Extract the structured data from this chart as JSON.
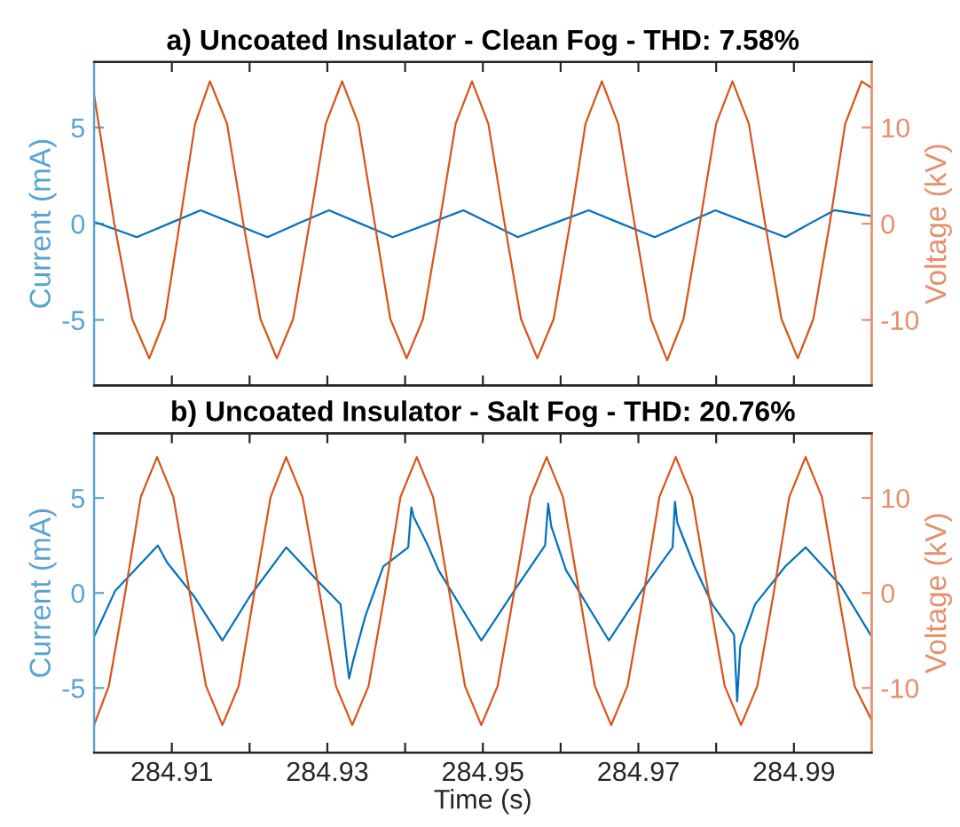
{
  "chart_data": [
    {
      "type": "line",
      "title": "a) Uncoated Insulator - Clean Fog - THD: 7.58%",
      "ylabel": "Current (mA)",
      "y2label": "Voltage (kV)",
      "tick_labels": "y",
      "grid": false,
      "line_style": "solid",
      "marker": "none",
      "xlim": [
        284.9,
        285.0
      ],
      "xticks": [
        284.91,
        {
          "value": 284.92,
          "label": null
        },
        284.93,
        {
          "value": 284.94,
          "label": null
        },
        284.95,
        {
          "value": 284.96,
          "label": null
        },
        284.97,
        {
          "value": 284.98,
          "label": null
        },
        284.99
      ],
      "ylim": [
        -8.4,
        8.4
      ],
      "yticks": [
        -5,
        0,
        5
      ],
      "y2lim": [
        -16.8,
        16.8
      ],
      "y2ticks": [
        -10,
        0,
        10
      ],
      "series": [
        {
          "axis": "y",
          "color": "#0072bd",
          "x": [
            284.9,
            284.9055,
            284.9096,
            284.9137,
            284.918,
            284.9223,
            284.9262,
            284.9302,
            284.9343,
            284.9384,
            284.943,
            284.9475,
            284.951,
            284.9545,
            284.959,
            284.9636,
            284.9678,
            284.9721,
            284.976,
            284.9799,
            284.9844,
            284.9889,
            284.992,
            284.9952,
            285.0
          ],
          "values": [
            0.1,
            -0.7,
            0,
            0.7,
            0,
            -0.7,
            0,
            0.7,
            0,
            -0.7,
            0,
            0.7,
            0,
            -0.7,
            0,
            0.7,
            0,
            -0.7,
            0,
            0.7,
            0,
            -0.7,
            0,
            0.7,
            0.4
          ]
        },
        {
          "axis": "y2",
          "color": "#d95319",
          "x": [
            284.9,
            284.9026,
            284.9049,
            284.9071,
            284.9091,
            284.911,
            284.913,
            284.9149,
            284.9171,
            284.9192,
            284.9214,
            284.9235,
            284.9256,
            284.9277,
            284.9298,
            284.9319,
            284.934,
            284.9361,
            284.9381,
            284.9402,
            284.9423,
            284.9444,
            284.9465,
            284.9486,
            284.9507,
            284.9528,
            284.9549,
            284.957,
            284.9591,
            284.9612,
            284.9632,
            284.9653,
            284.9674,
            284.9695,
            284.9716,
            284.9737,
            284.9758,
            284.9779,
            284.98,
            284.9821,
            284.9842,
            284.9863,
            284.9884,
            284.9905,
            284.9925,
            284.9946,
            284.9966,
            284.9987,
            285.0
          ],
          "values": [
            13.4,
            0,
            -9.9,
            -14.0,
            -9.9,
            0,
            10.4,
            14.8,
            10.4,
            0,
            -9.9,
            -14.0,
            -9.9,
            0,
            10.4,
            14.8,
            10.4,
            0,
            -9.9,
            -14.0,
            -9.9,
            0,
            10.4,
            14.8,
            10.4,
            0,
            -9.9,
            -14.0,
            -9.9,
            0,
            10.4,
            14.8,
            10.4,
            0,
            -9.9,
            -14.2,
            -9.9,
            0,
            10.4,
            14.8,
            10.4,
            0,
            -9.9,
            -14.0,
            -9.9,
            0,
            10.4,
            14.8,
            14.1
          ]
        }
      ]
    },
    {
      "type": "line",
      "title": "b) Uncoated Insulator - Salt Fog - THD: 20.76%",
      "xlabel": "Time (s)",
      "ylabel": "Current (mA)",
      "y2label": "Voltage (kV)",
      "grid": false,
      "line_style": "solid",
      "marker": "none",
      "xlim": [
        284.9,
        285.0
      ],
      "xticks": [
        284.91,
        {
          "value": 284.92,
          "label": null
        },
        284.93,
        {
          "value": 284.94,
          "label": null
        },
        284.95,
        {
          "value": 284.96,
          "label": null
        },
        284.97,
        {
          "value": 284.98,
          "label": null
        },
        284.99
      ],
      "ylim": [
        -8.4,
        8.4
      ],
      "yticks": [
        -5,
        0,
        5
      ],
      "y2lim": [
        -16.8,
        16.8
      ],
      "y2ticks": [
        -10,
        0,
        10
      ],
      "series": [
        {
          "axis": "y",
          "color": "#0072bd",
          "x": [
            284.9,
            284.9027,
            284.9082,
            284.9094,
            284.9129,
            284.9165,
            284.92,
            284.9247,
            284.9286,
            284.9317,
            284.9325,
            284.9328,
            284.9333,
            284.9349,
            284.9372,
            284.9404,
            284.9408,
            284.9411,
            284.9427,
            284.9443,
            284.9498,
            284.9545,
            284.958,
            284.9584,
            284.9588,
            284.9607,
            284.9662,
            284.9709,
            284.9744,
            284.9747,
            284.975,
            284.9772,
            284.9795,
            284.9823,
            284.9827,
            284.9831,
            284.985,
            284.9889,
            284.9915,
            284.996,
            285.0
          ],
          "values": [
            -2.3,
            0.1,
            2.5,
            1.6,
            -0.2,
            -2.5,
            -0.2,
            2.4,
            0.7,
            -0.6,
            -3.5,
            -4.5,
            -3.6,
            -1.2,
            1.4,
            2.4,
            4.5,
            4.0,
            2.7,
            1.2,
            -2.5,
            0.4,
            2.5,
            4.7,
            3.5,
            1.2,
            -2.5,
            0.4,
            2.4,
            4.8,
            3.7,
            1.4,
            -0.6,
            -2.2,
            -5.7,
            -2.8,
            -0.6,
            1.4,
            2.4,
            0.4,
            -2.3
          ]
        },
        {
          "axis": "y2",
          "color": "#d95319",
          "x": [
            284.9,
            284.9019,
            284.904,
            284.906,
            284.9081,
            284.9102,
            284.9123,
            284.9144,
            284.9165,
            284.9186,
            284.9206,
            284.9227,
            284.9247,
            284.9268,
            284.929,
            284.9311,
            284.9332,
            284.9353,
            284.9374,
            284.9394,
            284.9415,
            284.9436,
            284.9457,
            284.9477,
            284.9498,
            284.9519,
            284.954,
            284.9561,
            284.9582,
            284.9603,
            284.9624,
            284.9644,
            284.9665,
            284.9686,
            284.9707,
            284.9727,
            284.9748,
            284.9769,
            284.979,
            284.9811,
            284.9832,
            284.9853,
            284.9874,
            284.9894,
            284.9915,
            284.9936,
            284.9957,
            284.9978,
            285.0
          ],
          "values": [
            -13.9,
            -9.8,
            0,
            10.1,
            14.3,
            10.1,
            0,
            -9.8,
            -13.9,
            -9.8,
            0,
            10.1,
            14.3,
            10.1,
            0,
            -9.8,
            -13.9,
            -9.8,
            0,
            10.1,
            14.3,
            10.1,
            0,
            -9.8,
            -13.9,
            -9.8,
            0,
            10.1,
            14.3,
            10.1,
            0,
            -9.8,
            -13.9,
            -9.8,
            0,
            10.1,
            14.3,
            10.1,
            0,
            -9.8,
            -13.9,
            -9.8,
            0,
            10.1,
            14.3,
            10.1,
            0,
            -9.8,
            -13.4
          ]
        }
      ]
    }
  ]
}
